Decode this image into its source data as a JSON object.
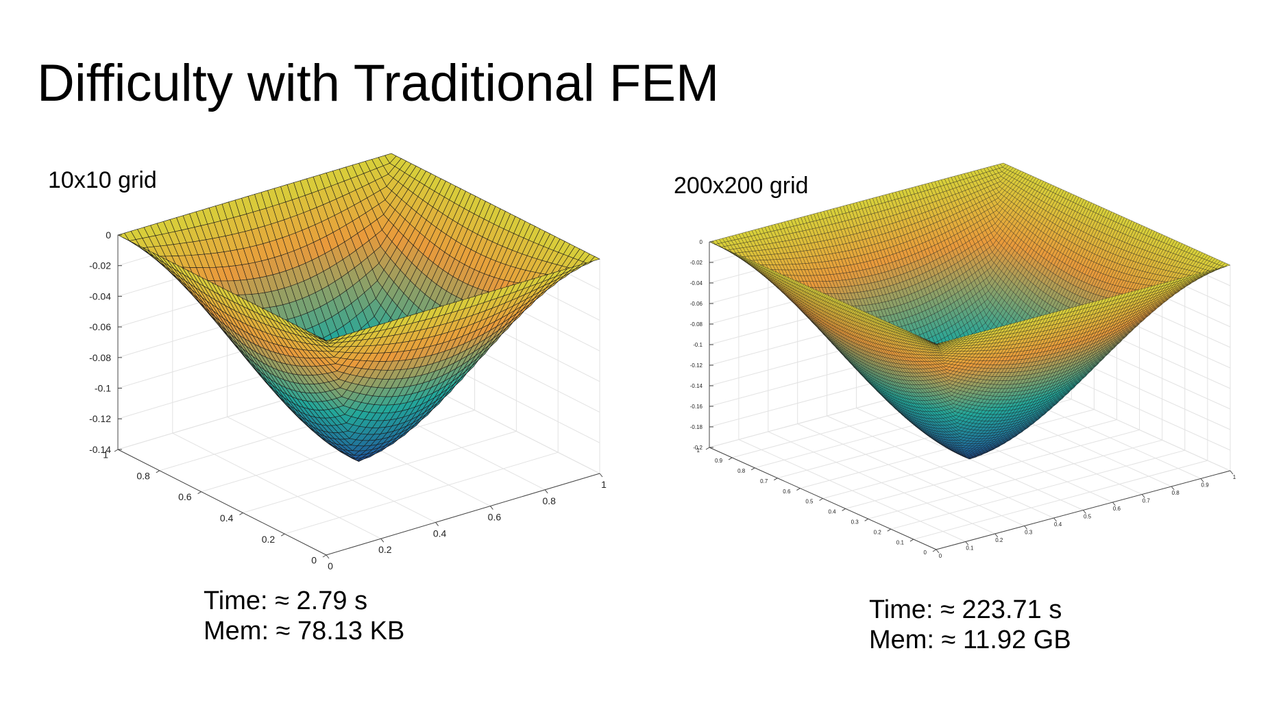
{
  "slide": {
    "title": "Difficulty with Traditional FEM"
  },
  "colors": {
    "surface_low": "#1f4e9c",
    "surface_mid": "#23a79a",
    "surface_upper": "#e99a3b",
    "surface_high": "#d7d13a",
    "mesh_line": "#1a1a1a",
    "grid_line": "#e2e2e2",
    "axis_line": "#444444"
  },
  "panels": [
    {
      "label": "10x10 grid",
      "time": "Time: ≈ 2.79 s",
      "mem": "Mem: ≈ 78.13 KB"
    },
    {
      "label": "200x200 grid",
      "time": "Time: ≈ 223.71 s",
      "mem": "Mem: ≈ 11.92 GB"
    }
  ],
  "chart_data": [
    {
      "type": "surface",
      "title": "10x10 grid",
      "x": {
        "range": [
          0,
          1
        ],
        "ticks": [
          "0",
          "0.2",
          "0.4",
          "0.6",
          "0.8",
          "1"
        ]
      },
      "y": {
        "range": [
          0,
          1
        ],
        "ticks": [
          "0",
          "0.2",
          "0.4",
          "0.6",
          "0.8",
          "1"
        ]
      },
      "z": {
        "range": [
          -0.14,
          0
        ],
        "ticks": [
          "0",
          "-0.02",
          "-0.04",
          "-0.06",
          "-0.08",
          "-0.1",
          "-0.12",
          "-0.14"
        ]
      },
      "z_min": -0.14,
      "mesh_lines": 42,
      "grid": true
    },
    {
      "type": "surface",
      "title": "200x200 grid",
      "x": {
        "range": [
          0,
          1
        ],
        "ticks": [
          "0",
          "0.1",
          "0.2",
          "0.3",
          "0.4",
          "0.5",
          "0.6",
          "0.7",
          "0.8",
          "0.9",
          "1"
        ]
      },
      "y": {
        "range": [
          0,
          1
        ],
        "ticks": [
          "0",
          "0.1",
          "0.2",
          "0.3",
          "0.4",
          "0.5",
          "0.6",
          "0.7",
          "0.8",
          "0.9",
          "1"
        ]
      },
      "z": {
        "range": [
          -0.2,
          0
        ],
        "ticks": [
          "0",
          "-0.02",
          "-0.04",
          "-0.06",
          "-0.08",
          "-0.1",
          "-0.12",
          "-0.14",
          "-0.16",
          "-0.18",
          "-0.2"
        ]
      },
      "z_min": -0.2,
      "mesh_lines": 90,
      "grid": true
    }
  ]
}
